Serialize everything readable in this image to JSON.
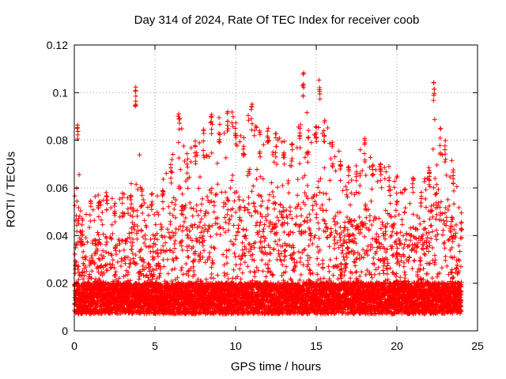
{
  "chart_data": {
    "type": "scatter",
    "title": "Day 314 of 2024, Rate Of TEC Index for receiver coob",
    "xlabel": "GPS time / hours",
    "ylabel": "ROTI / TECUs",
    "xlim": [
      0,
      25
    ],
    "ylim": [
      0,
      0.12
    ],
    "xticks": [
      "0",
      "5",
      "10",
      "15",
      "20",
      "25"
    ],
    "yticks": [
      "0",
      "0.02",
      "0.04",
      "0.06",
      "0.08",
      "0.1",
      "0.12"
    ],
    "grid": true,
    "marker": "+",
    "color": "#ff0000",
    "series": [
      {
        "name": "ROTI",
        "sampling": "approx. every 0.01 h from 0 to 24 h",
        "baseline_approx": 0.013,
        "spread_approx": 0.012,
        "envelope": {
          "x": [
            0,
            0.2,
            0.5,
            1,
            1.5,
            2,
            2.5,
            3,
            3.5,
            3.8,
            4.2,
            4.8,
            5.5,
            6,
            6.5,
            7,
            7.5,
            8,
            8.5,
            9,
            9.5,
            10,
            10.5,
            11,
            11.5,
            12,
            12.5,
            13,
            13.5,
            14,
            14.2,
            14.5,
            15,
            15.2,
            15.5,
            16,
            16.5,
            17,
            17.5,
            18,
            18.5,
            19,
            19.5,
            20,
            20.5,
            21,
            21.5,
            22,
            22.3,
            22.7,
            23,
            23.5,
            24
          ],
          "ymax": [
            0.06,
            0.089,
            0.05,
            0.055,
            0.058,
            0.062,
            0.055,
            0.058,
            0.06,
            0.103,
            0.06,
            0.058,
            0.065,
            0.07,
            0.096,
            0.075,
            0.08,
            0.085,
            0.093,
            0.09,
            0.095,
            0.09,
            0.085,
            0.096,
            0.085,
            0.088,
            0.085,
            0.08,
            0.08,
            0.09,
            0.11,
            0.085,
            0.09,
            0.107,
            0.09,
            0.08,
            0.075,
            0.07,
            0.07,
            0.083,
            0.07,
            0.075,
            0.07,
            0.065,
            0.06,
            0.07,
            0.06,
            0.07,
            0.105,
            0.085,
            0.08,
            0.07,
            0.05
          ]
        }
      }
    ]
  }
}
